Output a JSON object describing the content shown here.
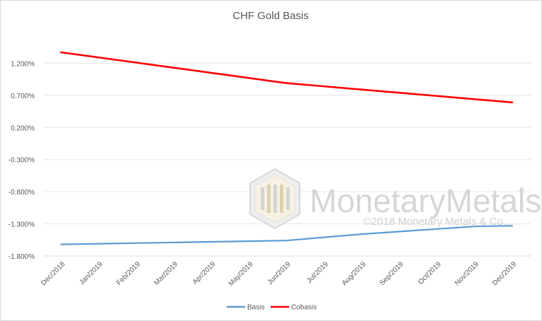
{
  "chart_data": {
    "type": "line",
    "title": "CHF Gold Basis",
    "categories": [
      "Dec/2018",
      "Jan/2019",
      "Feb/2019",
      "Mar/2019",
      "Apr/2019",
      "May/2019",
      "Jun/2019",
      "Jul/2019",
      "Aug/2019",
      "Sep/2019",
      "Oct/2019",
      "Nov/2019",
      "Dec/2019"
    ],
    "y_ticks": [
      "1.200%",
      "0.700%",
      "0.200%",
      "-0.300%",
      "-0.800%",
      "-1.300%",
      "-1.800%"
    ],
    "ylim": [
      -1.8,
      1.7
    ],
    "grid": true,
    "legend_position": "bottom",
    "series": [
      {
        "name": "Basis",
        "color": "#5b9bd5",
        "values": [
          -1.62,
          -1.61,
          -1.6,
          -1.59,
          -1.58,
          -1.57,
          -1.56,
          -1.51,
          -1.46,
          -1.42,
          -1.38,
          -1.34,
          -1.33
        ]
      },
      {
        "name": "Cobasis",
        "color": "#ff0000",
        "values": [
          1.37,
          1.29,
          1.21,
          1.13,
          1.05,
          0.97,
          0.89,
          0.84,
          0.79,
          0.74,
          0.69,
          0.64,
          0.59
        ]
      }
    ]
  },
  "watermark": {
    "brand": "MonetaryMetals",
    "copyright": "©2018 Monetary Metals & Co.",
    "registered": "®"
  }
}
